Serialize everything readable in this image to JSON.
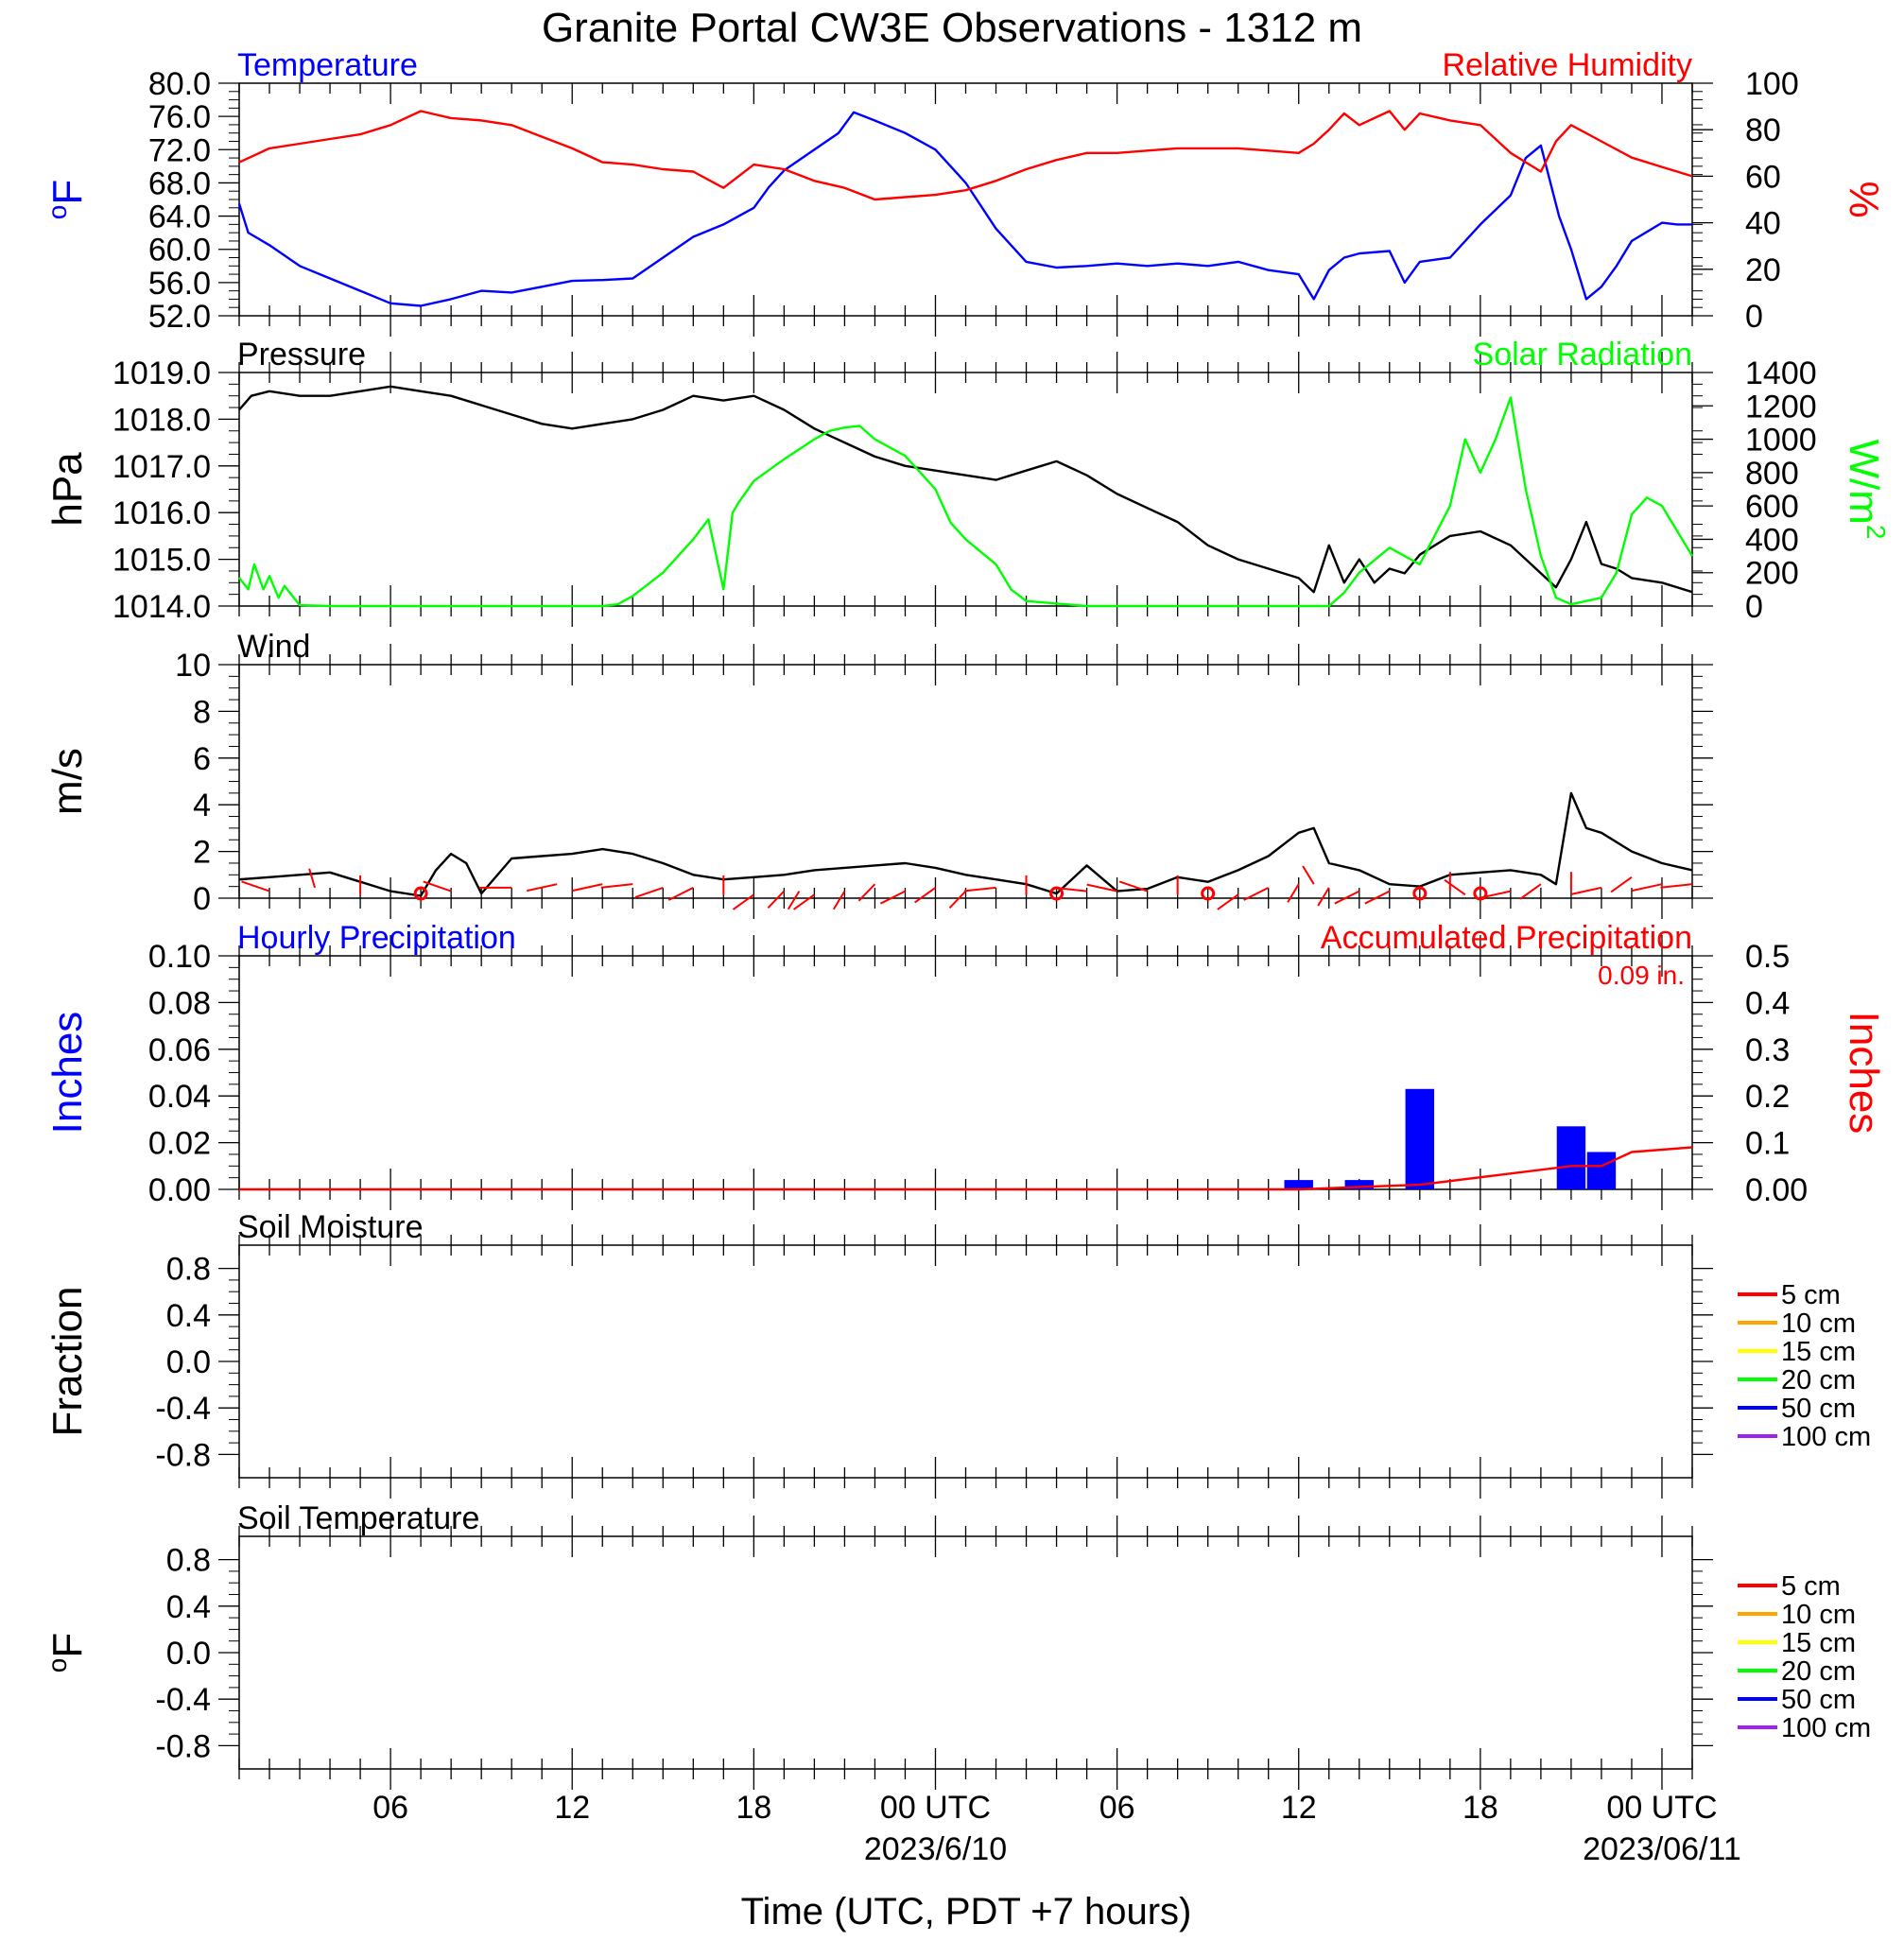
{
  "title": "Granite Portal CW3E Observations - 1312 m",
  "xaxis": {
    "label": "Time (UTC, PDT +7 hours)",
    "range_hours": [
      0,
      48
    ],
    "tick_hours": [
      5,
      11,
      17,
      23,
      29,
      35,
      41,
      47
    ],
    "tick_labels": [
      "06",
      "12",
      "18",
      "00 UTC",
      "06",
      "12",
      "18",
      "00 UTC"
    ],
    "date_labels": [
      {
        "hour": 23,
        "text": "2023/6/10"
      },
      {
        "hour": 47,
        "text": "2023/06/11"
      }
    ]
  },
  "colors": {
    "blue": "#0000ff",
    "red": "#ff0000",
    "green": "#00ff00",
    "black": "#000000"
  },
  "chart_data": [
    {
      "type": "line",
      "panel": "temperature-humidity",
      "left_title": "Temperature",
      "right_title": "Relative Humidity",
      "ylabel_left": "oF",
      "ylabel_right": "%",
      "ylim_left": [
        52,
        80
      ],
      "ylim_right": [
        0,
        100
      ],
      "yticks_left": [
        "80.0",
        "76.0",
        "72.0",
        "68.0",
        "64.0",
        "60.0",
        "56.0",
        "52.0"
      ],
      "yticks_right": [
        "100",
        "80",
        "60",
        "40",
        "20",
        "0"
      ],
      "series": [
        {
          "name": "Temperature",
          "axis": "left",
          "color": "#0000ff",
          "x": [
            0,
            0.3,
            1,
            2,
            3,
            4,
            5,
            6,
            7,
            8,
            9,
            10,
            11,
            12,
            13,
            14,
            15,
            16,
            17,
            17.5,
            18,
            19,
            19.8,
            20.3,
            21,
            22,
            23,
            24,
            25,
            26,
            27,
            28,
            29,
            30,
            31,
            32,
            33,
            34,
            35,
            35.5,
            36,
            36.5,
            37,
            38,
            38.5,
            39,
            40,
            41,
            42,
            42.5,
            43,
            43.6,
            44,
            44.5,
            45,
            45.5,
            46,
            47,
            47.5,
            48
          ],
          "y": [
            65.5,
            62,
            60.5,
            58,
            56.5,
            55,
            53.5,
            53.2,
            54,
            55,
            54.8,
            55.5,
            56.2,
            56.3,
            56.5,
            59,
            61.5,
            63,
            65,
            67.5,
            69.5,
            72,
            74,
            76.5,
            75.5,
            74,
            72,
            68,
            62.5,
            58.5,
            57.8,
            58,
            58.3,
            58,
            58.3,
            58,
            58.5,
            57.5,
            57,
            54,
            57.5,
            59,
            59.5,
            59.8,
            56,
            58.5,
            59,
            63,
            66.5,
            71,
            72.5,
            64,
            60,
            54,
            55.5,
            58,
            61,
            63.2,
            63,
            63
          ]
        },
        {
          "name": "Relative Humidity",
          "axis": "right",
          "color": "#ff0000",
          "x": [
            0,
            0.5,
            1,
            2,
            3,
            4,
            5,
            6,
            7,
            8,
            9,
            10,
            11,
            12,
            13,
            14,
            15,
            16,
            17,
            18,
            19,
            20,
            21,
            22,
            23,
            24,
            25,
            26,
            27,
            28,
            29,
            30,
            31,
            32,
            33,
            34,
            35,
            35.5,
            36,
            36.5,
            37,
            37.5,
            38,
            38.5,
            39,
            40,
            41,
            42,
            42.5,
            43,
            43.5,
            44,
            45,
            46,
            47,
            48
          ],
          "y": [
            66,
            69,
            72,
            74,
            76,
            78,
            82,
            88,
            85,
            84,
            82,
            77,
            72,
            66,
            65,
            63,
            62,
            55,
            65,
            63,
            58,
            55,
            50,
            51,
            52,
            54,
            58,
            63,
            67,
            70,
            70,
            71,
            72,
            72,
            72,
            71,
            70,
            74,
            80,
            87,
            82,
            85,
            88,
            80,
            87,
            84,
            82,
            70,
            66,
            62,
            75,
            82,
            75,
            68,
            64,
            60
          ]
        }
      ]
    },
    {
      "type": "line",
      "panel": "pressure-solar",
      "left_title": "Pressure",
      "right_title": "Solar Radiation",
      "ylabel_left": "hPa",
      "ylabel_right": "W/m2",
      "ylim_left": [
        1014,
        1019
      ],
      "ylim_right": [
        0,
        1400
      ],
      "yticks_left": [
        "1019.0",
        "1018.0",
        "1017.0",
        "1016.0",
        "1015.0",
        "1014.0"
      ],
      "yticks_right": [
        "1400",
        "1200",
        "1000",
        "800",
        "600",
        "400",
        "200",
        "0"
      ],
      "series": [
        {
          "name": "Pressure",
          "axis": "left",
          "color": "#000000",
          "x": [
            0,
            0.4,
            1,
            2,
            3,
            4,
            5,
            6,
            7,
            8,
            9,
            10,
            11,
            12,
            13,
            14,
            15,
            16,
            17,
            18,
            19,
            20,
            21,
            22,
            23,
            24,
            25,
            26,
            27,
            28,
            29,
            30,
            31,
            32,
            33,
            34,
            35,
            35.5,
            36,
            36.5,
            37,
            37.5,
            38,
            38.5,
            39,
            40,
            41,
            42,
            43,
            43.5,
            44,
            44.5,
            45,
            45.5,
            46,
            47,
            48
          ],
          "y": [
            1018.2,
            1018.5,
            1018.6,
            1018.5,
            1018.5,
            1018.6,
            1018.7,
            1018.6,
            1018.5,
            1018.3,
            1018.1,
            1017.9,
            1017.8,
            1017.9,
            1018.0,
            1018.2,
            1018.5,
            1018.4,
            1018.5,
            1018.2,
            1017.8,
            1017.5,
            1017.2,
            1017.0,
            1016.9,
            1016.8,
            1016.7,
            1016.9,
            1017.1,
            1016.8,
            1016.4,
            1016.1,
            1015.8,
            1015.3,
            1015.0,
            1014.8,
            1014.6,
            1014.3,
            1015.3,
            1014.5,
            1015.0,
            1014.5,
            1014.8,
            1014.7,
            1015.1,
            1015.5,
            1015.6,
            1015.3,
            1014.7,
            1014.4,
            1015.0,
            1015.8,
            1014.9,
            1014.8,
            1014.6,
            1014.5,
            1014.3
          ]
        },
        {
          "name": "Solar Radiation",
          "axis": "right",
          "color": "#00ff00",
          "x": [
            0,
            0.3,
            0.5,
            0.8,
            1,
            1.3,
            1.5,
            2,
            3,
            5,
            8,
            11,
            12,
            12.5,
            13,
            14,
            15,
            15.5,
            16,
            16.3,
            16.5,
            17,
            18,
            19,
            19.5,
            20,
            20.5,
            21,
            22,
            23,
            23.5,
            24,
            25,
            25.5,
            26,
            28,
            31,
            34,
            35,
            36,
            36.5,
            37,
            38,
            39,
            40,
            40.5,
            41,
            41.5,
            42,
            42.5,
            43,
            43.5,
            44,
            45,
            45.5,
            46,
            46.5,
            47,
            48
          ],
          "y": [
            170,
            100,
            250,
            100,
            180,
            50,
            120,
            5,
            0,
            0,
            0,
            0,
            0,
            10,
            60,
            200,
            400,
            520,
            100,
            560,
            620,
            750,
            880,
            1000,
            1050,
            1070,
            1080,
            1000,
            900,
            700,
            500,
            400,
            250,
            100,
            30,
            0,
            0,
            0,
            0,
            0,
            80,
            200,
            350,
            250,
            600,
            1000,
            800,
            1000,
            1250,
            700,
            300,
            50,
            10,
            50,
            200,
            550,
            650,
            600,
            300
          ]
        }
      ]
    },
    {
      "type": "line",
      "panel": "wind",
      "left_title": "Wind",
      "ylabel_left": "m/s",
      "ylim_left": [
        0,
        10
      ],
      "yticks_left": [
        "10",
        "8",
        "6",
        "4",
        "2",
        "0"
      ],
      "series": [
        {
          "name": "Wind",
          "axis": "left",
          "color": "#000000",
          "x": [
            0,
            1,
            2,
            3,
            4,
            5,
            6,
            6.5,
            7,
            7.5,
            8,
            9,
            10,
            11,
            12,
            13,
            14,
            15,
            16,
            17,
            18,
            19,
            20,
            21,
            22,
            23,
            24,
            25,
            26,
            27,
            28,
            29,
            30,
            31,
            32,
            33,
            34,
            35,
            35.5,
            36,
            37,
            38,
            39,
            40,
            41,
            42,
            43,
            43.5,
            44,
            44.5,
            45,
            46,
            47,
            48
          ],
          "y": [
            0.8,
            0.9,
            1.0,
            1.1,
            0.7,
            0.3,
            0.1,
            1.2,
            1.9,
            1.5,
            0.2,
            1.7,
            1.8,
            1.9,
            2.1,
            1.9,
            1.5,
            1.0,
            0.8,
            0.9,
            1.0,
            1.2,
            1.3,
            1.4,
            1.5,
            1.3,
            1.0,
            0.8,
            0.6,
            0.2,
            1.4,
            0.3,
            0.4,
            0.9,
            0.7,
            1.2,
            1.8,
            2.8,
            3.0,
            1.5,
            1.2,
            0.6,
            0.5,
            1.0,
            1.1,
            1.2,
            1.0,
            0.6,
            4.5,
            3.0,
            2.8,
            2.0,
            1.5,
            1.2
          ]
        }
      ],
      "barbs": {
        "x": [
          1,
          2.5,
          4,
          6,
          7,
          9,
          10.5,
          12,
          13,
          14,
          15,
          16,
          17,
          18,
          18.5,
          19,
          20,
          21,
          22,
          23,
          24,
          25,
          26,
          27,
          28,
          29,
          30,
          31,
          32,
          33,
          34,
          35,
          35.5,
          36,
          37,
          38,
          39,
          40,
          40.5,
          41,
          42,
          43,
          44,
          45,
          46,
          47,
          48
        ],
        "speed": [
          1,
          1.5,
          0.5,
          0,
          1,
          1.5,
          2,
          2,
          2,
          1.5,
          1.5,
          0.5,
          0.5,
          1,
          1,
          0.5,
          1,
          2,
          1,
          1.5,
          1,
          1.5,
          0.5,
          0,
          1,
          1,
          1,
          0.5,
          0,
          0.5,
          1.5,
          2,
          2,
          1.5,
          1,
          1,
          0,
          1,
          0.5,
          0,
          1,
          2,
          1,
          1.5,
          3,
          2,
          2
        ],
        "dir_deg": [
          300,
          350,
          0,
          0,
          300,
          270,
          250,
          250,
          260,
          240,
          230,
          0,
          220,
          210,
          200,
          220,
          200,
          210,
          230,
          220,
          210,
          260,
          0,
          0,
          280,
          290,
          300,
          0,
          0,
          220,
          230,
          200,
          340,
          200,
          230,
          230,
          0,
          0,
          320,
          0,
          250,
          220,
          0,
          250,
          220,
          250,
          260
        ]
      }
    },
    {
      "type": "bar",
      "panel": "precipitation",
      "left_title": "Hourly Precipitation",
      "right_title": "Accumulated Precipitation",
      "annotation": "0.09 in.",
      "ylabel_left": "Inches",
      "ylabel_right": "Inches",
      "ylim_left": [
        0,
        0.1
      ],
      "ylim_right": [
        0,
        0.5
      ],
      "yticks_left": [
        "0.10",
        "0.08",
        "0.06",
        "0.04",
        "0.02",
        "0.00"
      ],
      "yticks_right": [
        "0.5",
        "0.4",
        "0.3",
        "0.2",
        "0.1",
        "0.00"
      ],
      "bars": {
        "name": "Hourly Precipitation",
        "color": "#0000ff",
        "x": [
          35,
          37,
          39,
          44,
          45
        ],
        "values": [
          0.004,
          0.004,
          0.043,
          0.027,
          0.016
        ]
      },
      "series": [
        {
          "name": "Accumulated Precipitation",
          "axis": "right",
          "color": "#ff0000",
          "x": [
            0,
            35,
            37,
            39,
            44,
            45,
            46,
            48
          ],
          "y": [
            0,
            0,
            0.005,
            0.01,
            0.05,
            0.05,
            0.08,
            0.09
          ]
        }
      ]
    },
    {
      "type": "line",
      "panel": "soil-moisture",
      "left_title": "Soil Moisture",
      "ylabel_left": "Fraction",
      "ylim_left": [
        -1,
        1
      ],
      "yticks_left": [
        "0.8",
        "0.4",
        "0.0",
        "-0.4",
        "-0.8"
      ],
      "legend": [
        {
          "label": "5 cm",
          "color": "#ff0000"
        },
        {
          "label": "10 cm",
          "color": "#ffa500"
        },
        {
          "label": "15 cm",
          "color": "#ffff00"
        },
        {
          "label": "20 cm",
          "color": "#00ff00"
        },
        {
          "label": "50 cm",
          "color": "#0000ff"
        },
        {
          "label": "100 cm",
          "color": "#a020f0"
        }
      ],
      "series": []
    },
    {
      "type": "line",
      "panel": "soil-temperature",
      "left_title": "Soil Temperature",
      "ylabel_left": "oF",
      "ylim_left": [
        -1,
        1
      ],
      "yticks_left": [
        "0.8",
        "0.4",
        "0.0",
        "-0.4",
        "-0.8"
      ],
      "legend": [
        {
          "label": "5 cm",
          "color": "#ff0000"
        },
        {
          "label": "10 cm",
          "color": "#ffa500"
        },
        {
          "label": "15 cm",
          "color": "#ffff00"
        },
        {
          "label": "20 cm",
          "color": "#00ff00"
        },
        {
          "label": "50 cm",
          "color": "#0000ff"
        },
        {
          "label": "100 cm",
          "color": "#a020f0"
        }
      ],
      "series": []
    }
  ]
}
